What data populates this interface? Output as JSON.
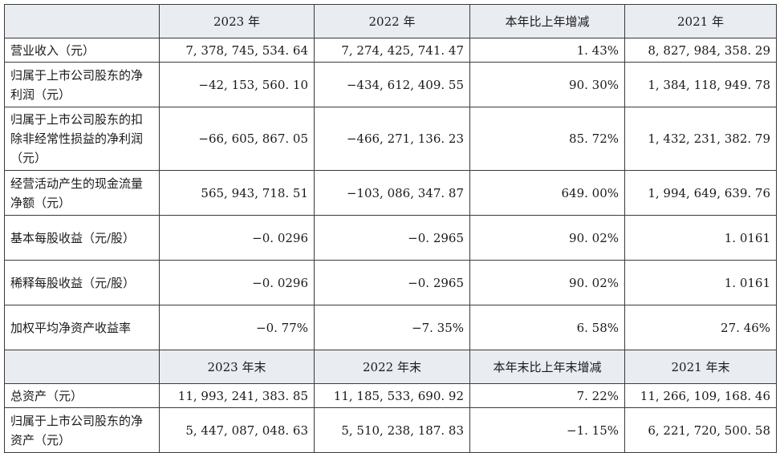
{
  "header1": [
    "2023 年",
    "2022 年",
    "本年比上年增减",
    "2021 年"
  ],
  "header2": [
    "2023 年末",
    "2022 年末",
    "本年末比上年末增减",
    "2021 年末"
  ],
  "rows1": [
    {
      "label": "营业收入（元）",
      "values": [
        "7, 378, 745, 534. 64",
        "7, 274, 425, 741. 47",
        "1. 43%",
        "8, 827, 984, 358. 29"
      ]
    },
    {
      "label": "归属于上市公司股东的净利润（元）",
      "values": [
        "−42, 153, 560. 10",
        "−434, 612, 409. 55",
        "90. 30%",
        "1, 384, 118, 949. 78"
      ]
    },
    {
      "label": "归属于上市公司股东的扣除非经常性损益的净利润（元）",
      "values": [
        "−66, 605, 867. 05",
        "−466, 271, 136. 23",
        "85. 72%",
        "1, 432, 231, 382. 79"
      ]
    },
    {
      "label": "经营活动产生的现金流量净额（元）",
      "values": [
        "565, 943, 718. 51",
        "−103, 086, 347. 87",
        "649. 00%",
        "1, 994, 649, 639. 76"
      ]
    },
    {
      "label": "基本每股收益（元/股）",
      "values": [
        "−0. 0296",
        "−0. 2965",
        "90. 02%",
        "1. 0161"
      ]
    },
    {
      "label": "稀释每股收益（元/股）",
      "values": [
        "−0. 0296",
        "−0. 2965",
        "90. 02%",
        "1. 0161"
      ]
    },
    {
      "label": "加权平均净资产收益率",
      "values": [
        "−0. 77%",
        "−7. 35%",
        "6. 58%",
        "27. 46%"
      ]
    }
  ],
  "rows2": [
    {
      "label": "总资产（元）",
      "values": [
        "11, 993, 241, 383. 85",
        "11, 185, 533, 690. 92",
        "7. 22%",
        "11, 266, 109, 168. 46"
      ]
    },
    {
      "label": "归属于上市公司股东的净资产（元）",
      "values": [
        "5, 447, 087, 048. 63",
        "5, 510, 238, 187. 83",
        "−1. 15%",
        "6, 221, 720, 500. 58"
      ]
    }
  ]
}
